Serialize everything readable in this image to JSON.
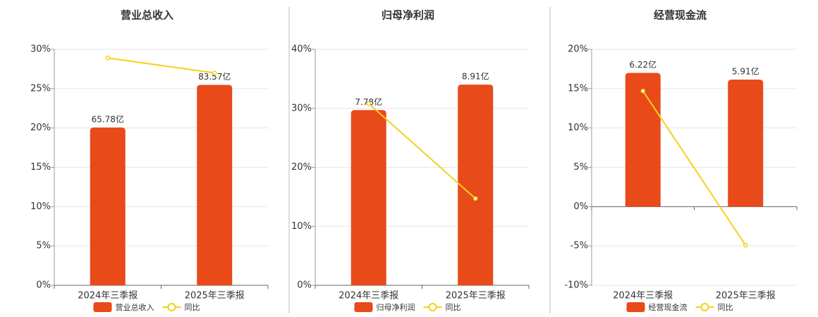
{
  "chart_data": [
    {
      "type": "bar",
      "title": "营业总收入",
      "categories": [
        "2024年三季报",
        "2025年三季报"
      ],
      "ylim": [
        0,
        30
      ],
      "yticks": [
        {
          "value": 0,
          "label": "0%"
        },
        {
          "value": 5,
          "label": "5%"
        },
        {
          "value": 10,
          "label": "10%"
        },
        {
          "value": 15,
          "label": "15%"
        },
        {
          "value": 20,
          "label": "20%"
        },
        {
          "value": 25,
          "label": "25%"
        },
        {
          "value": 30,
          "label": "30%"
        }
      ],
      "y2lim": [
        0,
        98.4
      ],
      "grid": true,
      "series": [
        {
          "name": "营业总收入",
          "type": "bar",
          "axis": "y2",
          "color": "#e84a1a",
          "values": [
            65.78,
            83.57
          ],
          "value_labels": [
            "65.78亿",
            "83.57亿"
          ]
        },
        {
          "name": "同比",
          "type": "line",
          "color": "#f2d11a",
          "values": [
            28.9,
            27.0
          ]
        }
      ]
    },
    {
      "type": "bar",
      "title": "归母净利润",
      "categories": [
        "2024年三季报",
        "2025年三季报"
      ],
      "ylim": [
        0,
        40
      ],
      "yticks": [
        {
          "value": 0,
          "label": "0%"
        },
        {
          "value": 10,
          "label": "10%"
        },
        {
          "value": 20,
          "label": "20%"
        },
        {
          "value": 30,
          "label": "30%"
        },
        {
          "value": 40,
          "label": "40%"
        }
      ],
      "y2lim": [
        0,
        10.48
      ],
      "grid": true,
      "series": [
        {
          "name": "归母净利润",
          "type": "bar",
          "axis": "y2",
          "color": "#e84a1a",
          "values": [
            7.78,
            8.91
          ],
          "value_labels": [
            "7.78亿",
            "8.91亿"
          ]
        },
        {
          "name": "同比",
          "type": "line",
          "color": "#f2d11a",
          "values": [
            30.8,
            14.7
          ]
        }
      ]
    },
    {
      "type": "bar",
      "title": "经营现金流",
      "categories": [
        "2024年三季报",
        "2025年三季报"
      ],
      "ylim": [
        -10,
        20
      ],
      "yticks": [
        {
          "value": -10,
          "label": "-10%"
        },
        {
          "value": -5,
          "label": "-5%"
        },
        {
          "value": 0,
          "label": "0%"
        },
        {
          "value": 5,
          "label": "5%"
        },
        {
          "value": 10,
          "label": "10%"
        },
        {
          "value": 15,
          "label": "15%"
        },
        {
          "value": 20,
          "label": "20%"
        }
      ],
      "y2lim": [
        -3.66,
        7.32
      ],
      "grid": true,
      "series": [
        {
          "name": "经营现金流",
          "type": "bar",
          "axis": "y2",
          "color": "#e84a1a",
          "values": [
            6.22,
            5.91
          ],
          "value_labels": [
            "6.22亿",
            "5.91亿"
          ]
        },
        {
          "name": "同比",
          "type": "line",
          "color": "#f2d11a",
          "values": [
            14.7,
            -4.9
          ]
        }
      ]
    }
  ]
}
